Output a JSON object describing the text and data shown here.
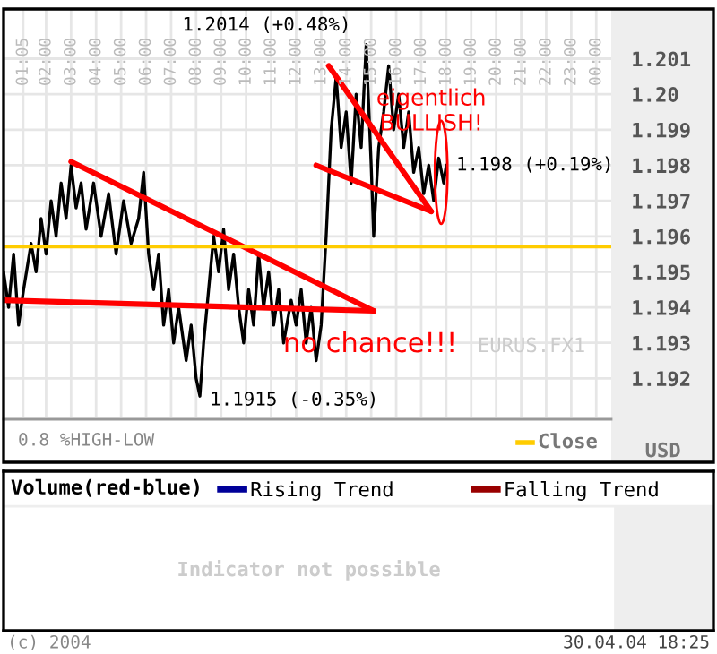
{
  "chart_data": [
    {
      "type": "line",
      "ylabel": "USD",
      "xlim": [
        0.3,
        24.6
      ],
      "ylim": [
        1.1909,
        1.2024
      ],
      "xticks": [
        {
          "value": 1.083,
          "label": "01:05"
        },
        {
          "value": 2,
          "label": "02:00"
        },
        {
          "value": 3,
          "label": "03:00"
        },
        {
          "value": 4,
          "label": "04:00"
        },
        {
          "value": 5,
          "label": "05:00"
        },
        {
          "value": 6,
          "label": "06:00"
        },
        {
          "value": 7,
          "label": "07:00"
        },
        {
          "value": 8,
          "label": "08:00"
        },
        {
          "value": 9,
          "label": "09:00"
        },
        {
          "value": 10,
          "label": "10:00"
        },
        {
          "value": 11,
          "label": "11:00"
        },
        {
          "value": 12,
          "label": "12:00"
        },
        {
          "value": 13,
          "label": "13:00"
        },
        {
          "value": 14,
          "label": "14:00"
        },
        {
          "value": 15,
          "label": "15:00"
        },
        {
          "value": 16,
          "label": "16:00"
        },
        {
          "value": 17,
          "label": "17:00"
        },
        {
          "value": 18,
          "label": "18:00"
        },
        {
          "value": 19,
          "label": "19:00"
        },
        {
          "value": 20,
          "label": "20:00"
        },
        {
          "value": 21,
          "label": "21:00"
        },
        {
          "value": 22,
          "label": "22:00"
        },
        {
          "value": 23,
          "label": "23:00"
        },
        {
          "value": 24,
          "label": "00:00"
        }
      ],
      "yticks": [
        1.192,
        1.193,
        1.194,
        1.195,
        1.196,
        1.197,
        1.198,
        1.199,
        {
          "value": 1.2,
          "label": "1.20"
        },
        1.201
      ],
      "grid": true,
      "series": [
        {
          "color": "#000000",
          "x": [
            0.3,
            0.5,
            0.7,
            0.9,
            1.1,
            1.4,
            1.6,
            1.8,
            2.0,
            2.2,
            2.4,
            2.6,
            2.8,
            3.0,
            3.2,
            3.4,
            3.6,
            3.9,
            4.2,
            4.5,
            4.8,
            5.1,
            5.4,
            5.7,
            5.9,
            6.1,
            6.3,
            6.5,
            6.7,
            6.9,
            7.1,
            7.3,
            7.6,
            7.8,
            8.0,
            8.15,
            8.3,
            8.5,
            8.7,
            8.9,
            9.1,
            9.3,
            9.5,
            9.7,
            9.9,
            10.1,
            10.3,
            10.5,
            10.7,
            10.9,
            11.1,
            11.3,
            11.5,
            11.8,
            12.0,
            12.2,
            12.4,
            12.6,
            12.8,
            13.0,
            13.2,
            13.4,
            13.6,
            13.8,
            14.0,
            14.2,
            14.4,
            14.6,
            14.8,
            15.0,
            15.1,
            15.3,
            15.5,
            15.7,
            15.9,
            16.1,
            16.3,
            16.5,
            16.7,
            16.9,
            17.1,
            17.3,
            17.5,
            17.7,
            17.9,
            18.0
          ],
          "values": [
            1.195,
            1.194,
            1.1955,
            1.1935,
            1.1945,
            1.1958,
            1.195,
            1.1965,
            1.1955,
            1.197,
            1.196,
            1.1975,
            1.1965,
            1.198,
            1.1968,
            1.1975,
            1.1962,
            1.1975,
            1.196,
            1.1972,
            1.1955,
            1.197,
            1.1958,
            1.1965,
            1.1978,
            1.1955,
            1.1945,
            1.1955,
            1.1935,
            1.1945,
            1.193,
            1.194,
            1.1925,
            1.1935,
            1.192,
            1.1915,
            1.193,
            1.1945,
            1.196,
            1.195,
            1.1962,
            1.1945,
            1.1955,
            1.194,
            1.193,
            1.1945,
            1.1935,
            1.1955,
            1.194,
            1.195,
            1.1935,
            1.1945,
            1.193,
            1.1942,
            1.1935,
            1.1945,
            1.193,
            1.194,
            1.1925,
            1.1935,
            1.196,
            1.199,
            1.2005,
            1.1985,
            1.1995,
            1.1975,
            1.2,
            1.1985,
            1.2014,
            1.198,
            1.196,
            1.1985,
            1.1995,
            1.2008,
            1.199,
            1.2,
            1.1985,
            1.1995,
            1.1978,
            1.1985,
            1.1972,
            1.198,
            1.197,
            1.1982,
            1.1975,
            1.198
          ]
        },
        {
          "type": "line",
          "color": "#ff0000",
          "x": [
            3.0,
            15.1
          ],
          "values": [
            1.1981,
            1.1939
          ]
        },
        {
          "type": "line",
          "color": "#ff0000",
          "x": [
            0.3,
            15.1
          ],
          "values": [
            1.1942,
            1.1939
          ]
        },
        {
          "type": "line",
          "color": "#ff0000",
          "x": [
            13.3,
            17.4
          ],
          "values": [
            1.2008,
            1.1967
          ]
        },
        {
          "type": "line",
          "color": "#ff0000",
          "x": [
            12.8,
            17.4
          ],
          "values": [
            1.198,
            1.1967
          ]
        }
      ],
      "ref_lines": [
        {
          "axis": "y",
          "value": 1.1957,
          "label": "Close",
          "color": "#ffcc00"
        }
      ],
      "annotations": [
        {
          "text": "1.2014 (+0.48%)",
          "x": 14.8,
          "y": 1.2014
        },
        {
          "text": "1.198 (+0.19%)",
          "x": 18.0,
          "y": 1.198
        },
        {
          "text": "1.1915 (-0.35%)",
          "x": 8.15,
          "y": 1.1915
        },
        {
          "text": "eigentlich\nBULLISH!",
          "x": 17.8,
          "y": 1.1978
        },
        "no chance!!!",
        "EURUS.FX1",
        "0.8 %HIGH-LOW"
      ]
    },
    {
      "type": "other",
      "title": "Volume(red-blue)",
      "legend": "top",
      "series": [
        {
          "name": "Rising Trend",
          "color": "#000099"
        },
        {
          "name": "Falling Trend",
          "color": "#990000"
        }
      ],
      "annotations": [
        "Indicator not possible",
        "(c) 2004",
        "30.04.04 18:25"
      ]
    }
  ]
}
